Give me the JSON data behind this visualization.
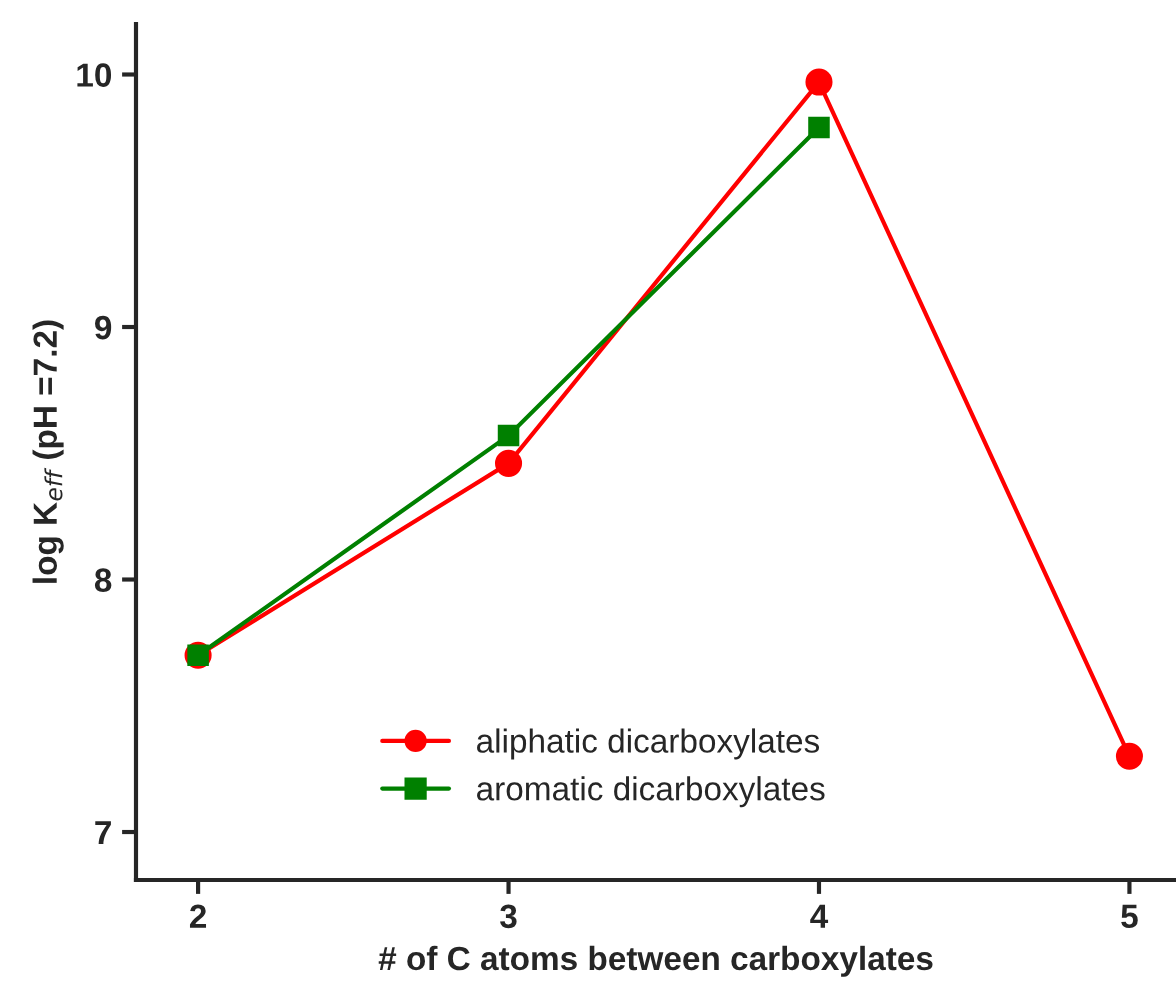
{
  "chart_data": {
    "type": "line",
    "xlabel": "# of C atoms between carboxylates",
    "ylabel": "log K$_{eff}$ (pH =7.2)",
    "x": [
      2,
      3,
      4,
      5
    ],
    "series": [
      {
        "name": "aliphatic dicarboxylates",
        "color": "#ff0000",
        "marker": "circle",
        "values": [
          7.7,
          8.46,
          9.97,
          7.3
        ]
      },
      {
        "name": "aromatic dicarboxylates",
        "color": "#008000",
        "marker": "square",
        "values": [
          7.7,
          8.57,
          9.79,
          null
        ]
      }
    ],
    "xlim": [
      1.8,
      5.15
    ],
    "xticks": [
      2,
      3,
      4,
      5
    ],
    "ylim": [
      6.81,
      10.2
    ],
    "yticks": [
      7,
      8,
      9,
      10
    ],
    "grid": false,
    "legend": "bottom",
    "line_style": "solid"
  }
}
